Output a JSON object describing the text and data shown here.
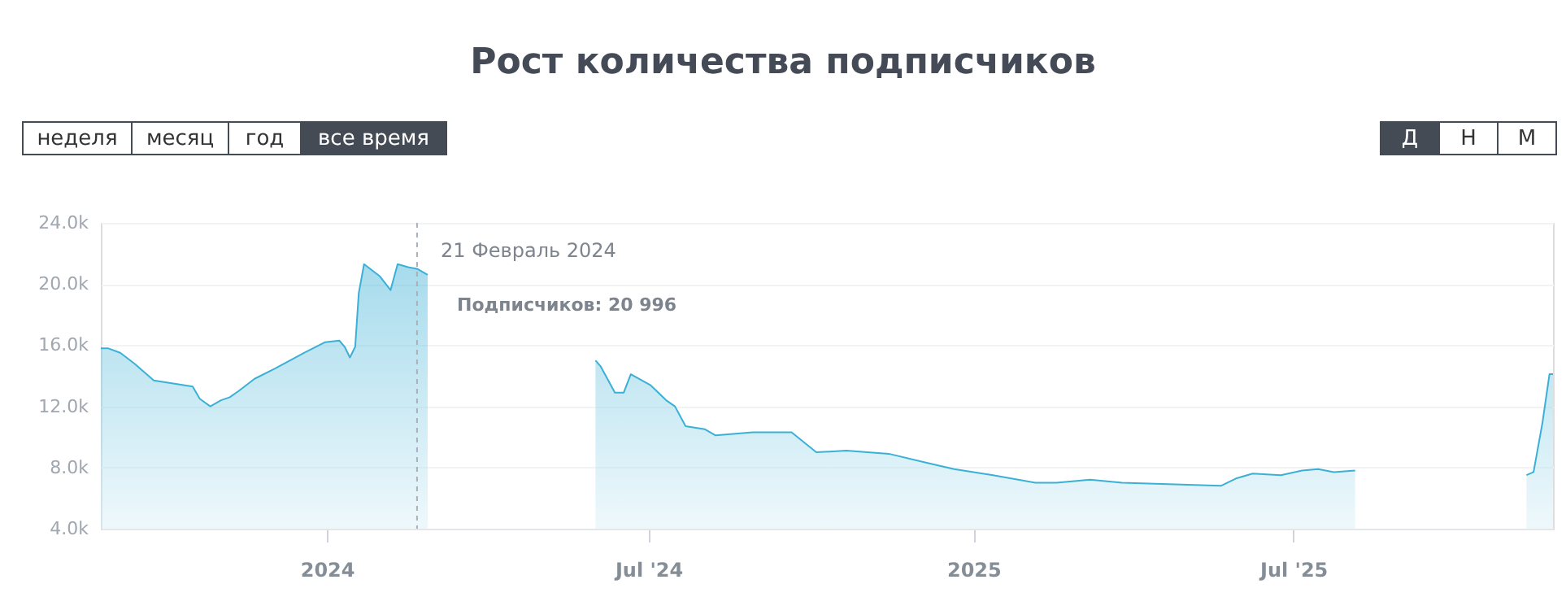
{
  "chart_data": {
    "type": "area",
    "title": "Рост количества подписчиков",
    "x": [
      "2023-08-26",
      "2023-08-30",
      "2023-09-06",
      "2023-09-14",
      "2023-09-25",
      "2023-10-06",
      "2023-10-17",
      "2023-10-21",
      "2023-10-27",
      "2023-11-02",
      "2023-11-07",
      "2023-11-12",
      "2023-11-21",
      "2023-12-03",
      "2023-12-19",
      "2023-12-31",
      "2024-01-08",
      "2024-01-11",
      "2024-01-14",
      "2024-01-17",
      "2024-01-19",
      "2024-01-22",
      "2024-01-31",
      "2024-02-06",
      "2024-02-10",
      "2024-02-16",
      "2024-02-21",
      "2024-02-27",
      "2024-03-11",
      "2024-03-23",
      "2024-03-26",
      "2024-04-19",
      "2024-05-08",
      "2024-05-23",
      "2024-05-28",
      "2024-06-01",
      "2024-06-04",
      "2024-06-12",
      "2024-06-17",
      "2024-06-21",
      "2024-07-02",
      "2024-07-11",
      "2024-07-16",
      "2024-07-22",
      "2024-08-02",
      "2024-08-08",
      "2024-08-29",
      "2024-09-20",
      "2024-10-04",
      "2024-10-21",
      "2024-11-14",
      "2024-12-06",
      "2024-12-21",
      "2025-01-12",
      "2025-02-05",
      "2025-02-17",
      "2025-03-08",
      "2025-03-26",
      "2025-05-21",
      "2025-05-30",
      "2025-06-08",
      "2025-06-24",
      "2025-07-06",
      "2025-07-15",
      "2025-07-24",
      "2025-08-05",
      "2025-09-02",
      "2025-10-01",
      "2025-11-10",
      "2025-11-14",
      "2025-11-19",
      "2025-11-23",
      "2025-11-25"
    ],
    "series": [
      {
        "color": "#3bb0d6",
        "values": [
          15800,
          15800,
          15500,
          14800,
          13700,
          13500,
          13300,
          12500,
          12000,
          12400,
          12600,
          13000,
          13800,
          14500,
          15500,
          16200,
          16300,
          15900,
          15200,
          15900,
          19400,
          21300,
          20500,
          19600,
          21300,
          21100,
          21000,
          20600,
          null,
          null,
          null,
          null,
          null,
          null,
          null,
          15000,
          14600,
          12900,
          12900,
          14100,
          13400,
          12400,
          12000,
          10700,
          10500,
          10100,
          10300,
          10300,
          9000,
          9100,
          8900,
          8300,
          7900,
          7500,
          7000,
          7000,
          7200,
          7000,
          6800,
          7300,
          7600,
          7500,
          7800,
          7900,
          7700,
          7800,
          null,
          null,
          7500,
          7700,
          10900,
          14100,
          14100
        ]
      }
    ],
    "xlim": [
      "2023-08-26",
      "2025-11-25"
    ],
    "xticks": [
      {
        "value": "2024-01-01",
        "label": "2024"
      },
      {
        "value": "2024-07-01",
        "label": "Jul '24"
      },
      {
        "value": "2025-01-01",
        "label": "2025"
      },
      {
        "value": "2025-07-01",
        "label": "Jul '25"
      }
    ],
    "ylim": [
      4000,
      24000
    ],
    "yticks": [
      {
        "value": 4000,
        "label": "4.0k"
      },
      {
        "value": 8000,
        "label": "8.0k"
      },
      {
        "value": 12000,
        "label": "12.0k"
      },
      {
        "value": 16000,
        "label": "16.0k"
      },
      {
        "value": 20000,
        "label": "20.0k"
      },
      {
        "value": 24000,
        "label": "24.0k"
      }
    ],
    "grid": "y",
    "ref_lines": [
      {
        "axis": "x",
        "value": "2024-02-21",
        "color": "#aab0b8",
        "line_style": "dashed"
      }
    ],
    "annotations": [
      "неделя",
      "месяц",
      "год",
      "все время",
      "Д",
      "Н",
      "М",
      "21 Февраль 2024",
      "Подписчиков: 20 996"
    ]
  }
}
